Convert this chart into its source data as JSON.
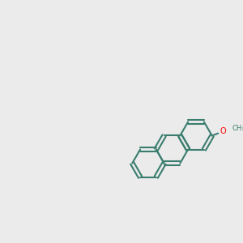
{
  "background_color": "#ebebeb",
  "bond_color": "#3a7d6e",
  "o_color": "#ff0000",
  "n_color": "#0000ff",
  "s_color": "#cccc00",
  "lw": 1.5
}
